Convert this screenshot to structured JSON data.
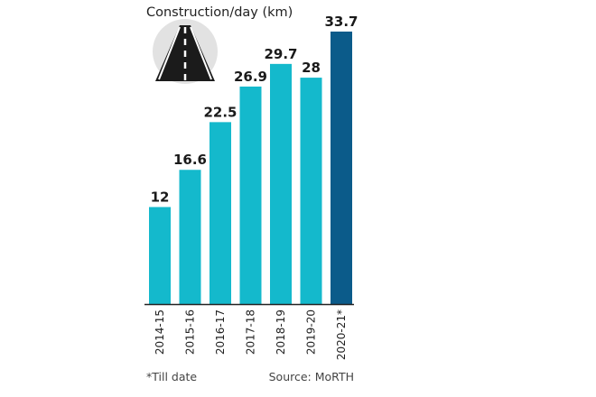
{
  "chart_data": {
    "type": "bar",
    "title": "Construction/day (km)",
    "categories": [
      "2014-15",
      "2015-16",
      "2016-17",
      "2017-18",
      "2018-19",
      "2019-20",
      "2020-21*"
    ],
    "values": [
      12,
      16.6,
      22.5,
      26.9,
      29.7,
      28,
      33.7
    ],
    "value_labels": [
      "12",
      "16.6",
      "22.5",
      "26.9",
      "29.7",
      "28",
      "33.7"
    ],
    "ylim": [
      0,
      33.7
    ],
    "grid": false,
    "colors": {
      "bar": "#14b9cc",
      "highlight_bar": "#0b5b8a",
      "baseline": "#222222",
      "icon_circle": "#e2e2e2"
    },
    "icon": "road-icon"
  },
  "footnote": "*Till date",
  "source": "Source: MoRTH"
}
